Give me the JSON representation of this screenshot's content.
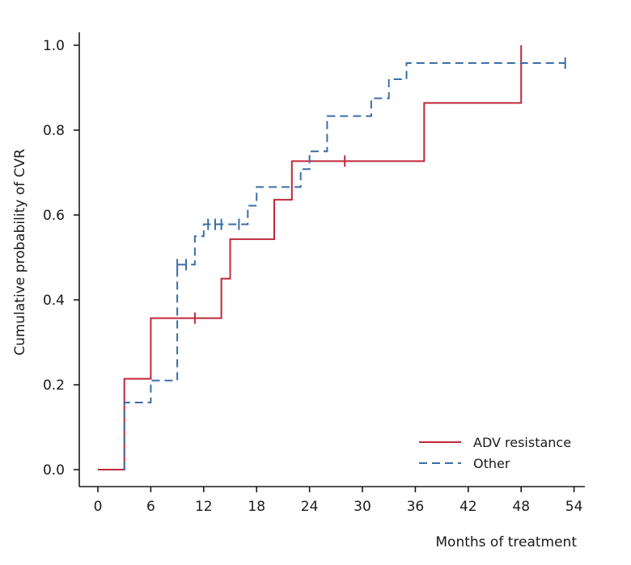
{
  "chart_data": {
    "type": "line",
    "title": "",
    "xlabel": "Months of treatment",
    "ylabel": "Cumulative probability of CVR",
    "xlim": [
      -2,
      55
    ],
    "ylim": [
      -0.04,
      1.04
    ],
    "xticks": [
      0,
      6,
      12,
      18,
      24,
      30,
      36,
      42,
      48,
      54
    ],
    "yticks": [
      0.0,
      0.2,
      0.4,
      0.6,
      0.8,
      1.0
    ],
    "xtick_labels": [
      "0",
      "6",
      "12",
      "18",
      "24",
      "30",
      "36",
      "42",
      "48",
      "54"
    ],
    "ytick_labels": [
      "0.0",
      "0.2",
      "0.4",
      "0.6",
      "0.8",
      "1.0"
    ],
    "grid": false,
    "legend_position": "bottom-right",
    "series": [
      {
        "name": "ADV resistance",
        "style": "solid",
        "color": "#c0283a",
        "steps": [
          [
            0,
            0.0
          ],
          [
            3,
            0.214
          ],
          [
            6,
            0.357
          ],
          [
            14,
            0.45
          ],
          [
            15,
            0.543
          ],
          [
            20,
            0.636
          ],
          [
            22,
            0.727
          ],
          [
            37,
            0.864
          ],
          [
            48,
            1.0
          ]
        ],
        "censored": [
          [
            11,
            0.357
          ],
          [
            28,
            0.727
          ]
        ]
      },
      {
        "name": "Other",
        "style": "dashed",
        "color": "#3a6ea5",
        "steps": [
          [
            3,
            0.0
          ],
          [
            3,
            0.158
          ],
          [
            6,
            0.21
          ],
          [
            9,
            0.483
          ],
          [
            11,
            0.55
          ],
          [
            12,
            0.578
          ],
          [
            17,
            0.622
          ],
          [
            18,
            0.666
          ],
          [
            23,
            0.708
          ],
          [
            24,
            0.75
          ],
          [
            26,
            0.833
          ],
          [
            31,
            0.875
          ],
          [
            33,
            0.92
          ],
          [
            35,
            0.958
          ],
          [
            53,
            0.958
          ]
        ],
        "censored": [
          [
            9,
            0.483
          ],
          [
            10,
            0.483
          ],
          [
            12.5,
            0.578
          ],
          [
            13.3,
            0.578
          ],
          [
            14,
            0.578
          ],
          [
            16,
            0.578
          ],
          [
            53,
            0.958
          ]
        ]
      }
    ]
  }
}
